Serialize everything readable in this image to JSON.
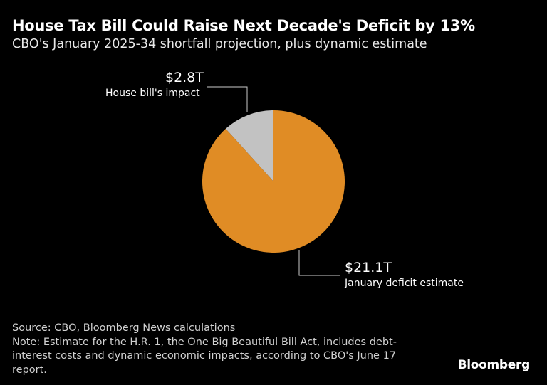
{
  "title": "House Tax Bill Could Raise Next Decade's Deficit by 13%",
  "subtitle": "CBO's January 2025-34 shortfall projection, plus dynamic estimate",
  "chart_data": {
    "type": "pie",
    "start": "top",
    "direction": "clockwise",
    "slices": [
      {
        "name": "January deficit estimate",
        "value": 21.1,
        "label": "$21.1T",
        "color": "#e08c25"
      },
      {
        "name": "House bill's impact",
        "value": 2.8,
        "label": "$2.8T",
        "color": "#c2c2c2"
      }
    ]
  },
  "source": "Source: CBO, Bloomberg News calculations",
  "note": "Note: Estimate for the H.R. 1, the One Big Beautiful Bill Act, includes debt-interest costs and dynamic economic impacts, according to CBO's June 17 report.",
  "logo": "Bloomberg"
}
